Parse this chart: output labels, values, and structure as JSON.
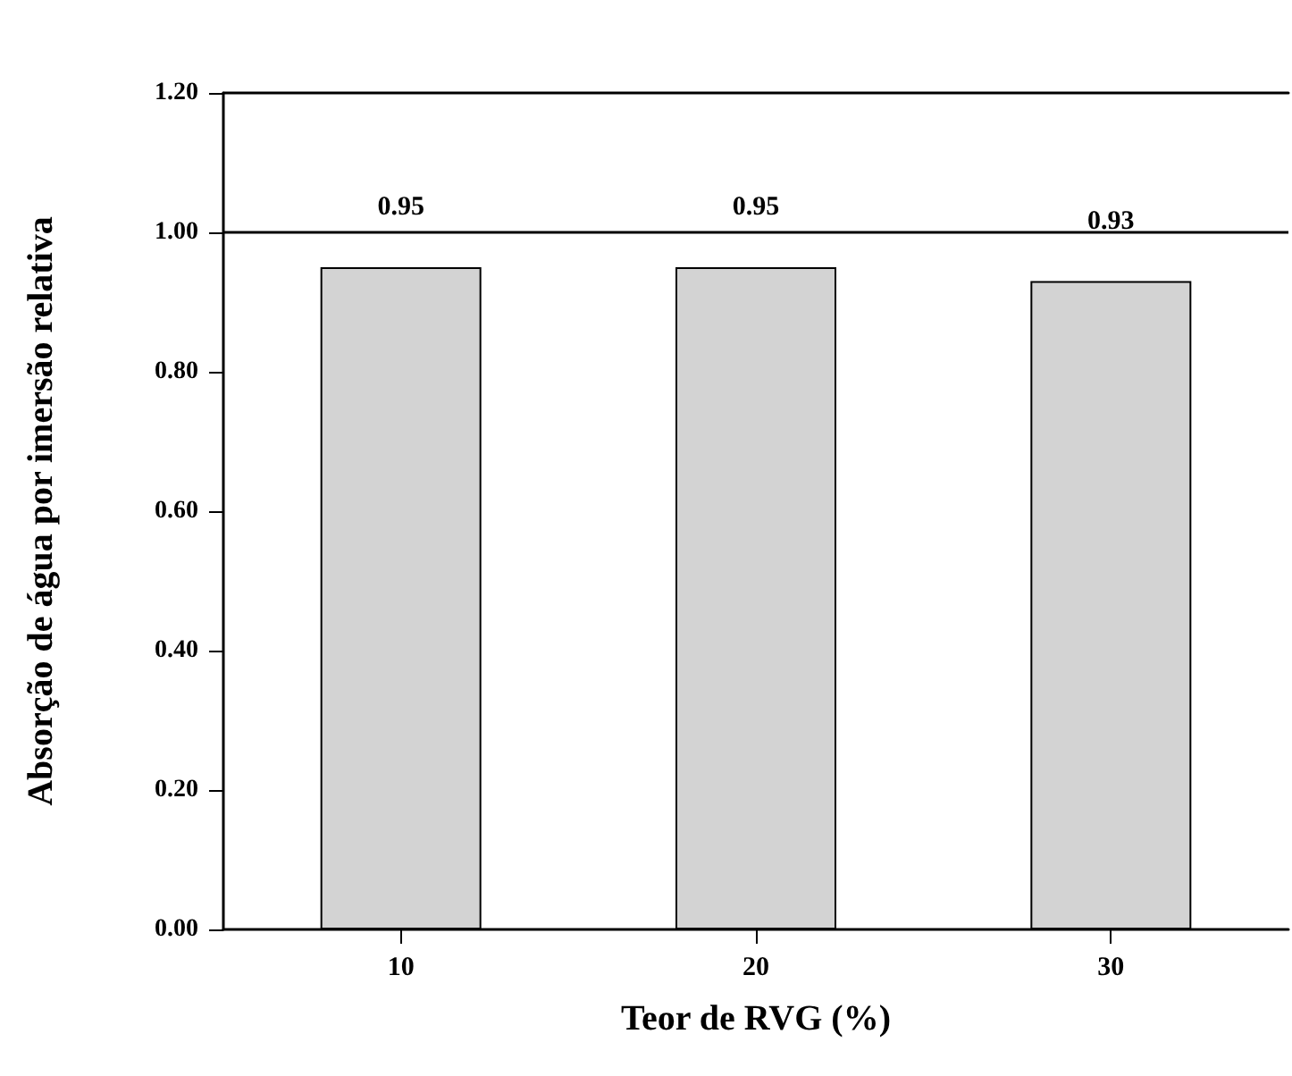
{
  "chart_data": {
    "type": "bar",
    "xlabel": "Teor de RVG (%)",
    "ylabel": "Absorção de água por imersão relativa",
    "categories": [
      "10",
      "20",
      "30"
    ],
    "values": [
      0.95,
      0.95,
      0.93
    ],
    "color": "#d3d3d3",
    "ylim": [
      0,
      1.2
    ],
    "yticks": [
      {
        "value": 0,
        "label": "0.00"
      },
      {
        "value": 0.2,
        "label": "0.20"
      },
      {
        "value": 0.4,
        "label": "0.40"
      },
      {
        "value": 0.6,
        "label": "0.60"
      },
      {
        "value": 0.8,
        "label": "0.80"
      },
      {
        "value": 1,
        "label": "1.00"
      },
      {
        "value": 1.2,
        "label": "1.20"
      }
    ],
    "ref_lines": [
      {
        "axis": "y",
        "value": 1,
        "color": "#000000"
      }
    ],
    "data_labels": true,
    "grid": false
  }
}
